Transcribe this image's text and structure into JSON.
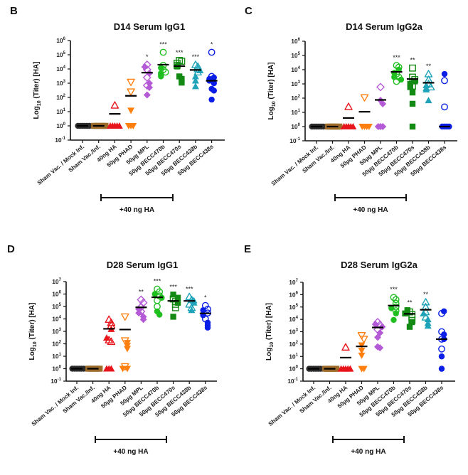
{
  "categories": [
    "Sham Vac. / Mock Inf.",
    "Sham Vac./Inf.",
    "40ng HA",
    "50µg PHAD",
    "50µg MPL",
    "50µg BECC470b",
    "50µg BECC470s",
    "50µg BECC438b",
    "50µg BECC438s"
  ],
  "group_styles": [
    {
      "color": "#2b2b2b",
      "marker": "circle"
    },
    {
      "color": "#9c6b2a",
      "marker": "square"
    },
    {
      "color": "#e8141b",
      "marker": "triangle-up"
    },
    {
      "color": "#ff7f0e",
      "marker": "triangle-down"
    },
    {
      "color": "#b45ad6",
      "marker": "diamond"
    },
    {
      "color": "#1fbf1f",
      "marker": "circle"
    },
    {
      "color": "#138a13",
      "marker": "square"
    },
    {
      "color": "#1fa3b8",
      "marker": "triangle-up"
    },
    {
      "color": "#0a1ee6",
      "marker": "circle"
    }
  ],
  "bracket_label": "+40 ng HA",
  "ylabel_prefix": "Log",
  "ylabel_sub": "10",
  "ylabel_suffix": " (Titer) [HA]",
  "chart_data": [
    {
      "panel": "B",
      "type": "scatter",
      "title": "D14 Serum IgG1",
      "xlabel": "",
      "ylabel": "Log10 (Titer) [HA]",
      "yscale": "log",
      "ylim_exp": [
        -1,
        6
      ],
      "categories_ref": "categories",
      "means": [
        1,
        1,
        7,
        130,
        5500,
        20000,
        16000,
        8500,
        1500
      ],
      "significance": [
        "",
        "",
        "",
        "",
        "*",
        "***",
        "***",
        "***",
        "*"
      ],
      "points": [
        {
          "open": [],
          "filled": [
            1,
            1,
            1,
            1,
            1,
            1
          ]
        },
        {
          "open": [],
          "filled": [
            1,
            1,
            1,
            1,
            1,
            1
          ]
        },
        {
          "open": [
            28
          ],
          "filled": [
            1,
            1,
            1,
            1,
            1
          ]
        },
        {
          "open": [
            1200,
            250
          ],
          "filled": [
            12,
            1,
            1,
            1
          ]
        },
        {
          "open": [
            20000,
            9000,
            2500,
            700
          ],
          "filled": [
            14000,
            5000,
            1000,
            500,
            150
          ]
        },
        {
          "open": [
            150000,
            18000,
            9000,
            6000
          ],
          "filled": [
            12000,
            5000,
            4000,
            3000
          ]
        },
        {
          "open": [
            40000,
            35000,
            25000,
            18000
          ],
          "filled": [
            15000,
            3000,
            2000,
            1100
          ]
        },
        {
          "open": [
            20000,
            15000,
            10000,
            6000
          ],
          "filled": [
            8000,
            3000,
            1500,
            600
          ]
        },
        {
          "open": [
            150000,
            3000
          ],
          "filled": [
            2500,
            2000,
            1500,
            1000,
            400,
            300,
            70
          ]
        }
      ]
    },
    {
      "panel": "C",
      "type": "scatter",
      "title": "D14 Serum IgG2a",
      "xlabel": "",
      "ylabel": "Log10 (Titer) [HA]",
      "yscale": "log",
      "ylim_exp": [
        -1,
        6
      ],
      "means": [
        1,
        1,
        4,
        11,
        75,
        7000,
        2200,
        1200,
        1
      ],
      "significance": [
        "",
        "",
        "",
        "",
        "",
        "***",
        "**",
        "**",
        ""
      ],
      "points": [
        {
          "open": [],
          "filled": [
            1,
            1,
            1,
            1,
            1,
            1
          ]
        },
        {
          "open": [],
          "filled": [
            1,
            1,
            1,
            1,
            1,
            1
          ]
        },
        {
          "open": [
            25
          ],
          "filled": [
            1,
            1,
            1,
            1,
            1
          ]
        },
        {
          "open": [
            110
          ],
          "filled": [
            1,
            1,
            1,
            1
          ]
        },
        {
          "open": [
            600
          ],
          "filled": [
            70,
            40,
            1,
            1,
            1
          ]
        },
        {
          "open": [
            20000,
            15000,
            5000,
            3000,
            1500
          ],
          "filled": [
            10000,
            6000,
            3000,
            2000
          ]
        },
        {
          "open": [
            13000,
            3000,
            2000,
            700
          ],
          "filled": [
            1500,
            1000,
            600,
            250,
            40,
            1
          ]
        },
        {
          "open": [
            5000,
            2000,
            1000,
            600
          ],
          "filled": [
            800,
            500,
            400,
            70
          ]
        },
        {
          "open": [
            1700,
            24
          ],
          "filled": [
            5000,
            1,
            1,
            1,
            1
          ]
        }
      ]
    },
    {
      "panel": "D",
      "type": "scatter",
      "title": "D28 Serum IgG1",
      "xlabel": "",
      "ylabel": "Log10 (Titer) [HA]",
      "yscale": "log",
      "ylim_exp": [
        -1,
        7
      ],
      "means": [
        1,
        1,
        1600,
        1400,
        85000,
        550000,
        280000,
        280000,
        28000
      ],
      "significance": [
        "",
        "",
        "",
        "",
        "**",
        "***",
        "***",
        "***",
        "*"
      ],
      "points": [
        {
          "open": [],
          "filled": [
            1,
            1,
            1,
            1,
            1,
            1
          ]
        },
        {
          "open": [],
          "filled": [
            1,
            1,
            1,
            1,
            1,
            1
          ]
        },
        {
          "open": [
            9000,
            5000,
            3000,
            200,
            150
          ],
          "filled": [
            1500,
            300,
            1,
            1,
            1
          ]
        },
        {
          "open": [
            15000,
            180,
            1.5
          ],
          "filled": [
            120,
            70,
            40,
            1,
            1
          ]
        },
        {
          "open": [
            350000,
            200000,
            90000,
            40000
          ],
          "filled": [
            60000,
            30000,
            15000,
            9000
          ]
        },
        {
          "open": [
            2500000,
            1500000,
            700000,
            300000,
            100000
          ],
          "filled": [
            1000000,
            500000,
            40000,
            22000
          ]
        },
        {
          "open": [
            400000,
            250000,
            150000,
            80000
          ],
          "filled": [
            900000,
            500000,
            200000,
            15000
          ]
        },
        {
          "open": [
            600000,
            350000,
            150000,
            80000
          ],
          "filled": [
            300000,
            200000,
            50000
          ]
        },
        {
          "open": [
            120000,
            60000,
            30000,
            10000
          ],
          "filled": [
            50000,
            20000,
            5000,
            3000,
            2000
          ]
        }
      ]
    },
    {
      "panel": "E",
      "type": "scatter",
      "title": "D28 Serum IgG2a",
      "xlabel": "",
      "ylabel": "Log10 (Titer) [HA]",
      "yscale": "log",
      "ylim_exp": [
        -1,
        7
      ],
      "means": [
        1,
        1,
        8,
        65,
        2200,
        130000,
        28000,
        60000,
        250
      ],
      "significance": [
        "",
        "",
        "",
        "",
        "",
        "***",
        "**",
        "**",
        ""
      ],
      "points": [
        {
          "open": [],
          "filled": [
            1,
            1,
            1,
            1,
            1,
            1
          ]
        },
        {
          "open": [],
          "filled": [
            1,
            1,
            1,
            1,
            1,
            1
          ]
        },
        {
          "open": [
            55
          ],
          "filled": [
            1,
            1,
            1,
            1,
            1
          ]
        },
        {
          "open": [
            500,
            250
          ],
          "filled": [
            80,
            30,
            12,
            1,
            1
          ]
        },
        {
          "open": [
            6000,
            3500,
            1500
          ],
          "filled": [
            4000,
            2500,
            800,
            350,
            60,
            50
          ]
        },
        {
          "open": [
            600000,
            400000,
            200000,
            100000,
            50000
          ],
          "filled": [
            80000,
            30000,
            9000
          ]
        },
        {
          "open": [
            40000,
            25000,
            15000,
            8000
          ],
          "filled": [
            55000,
            30000,
            6000,
            2500
          ]
        },
        {
          "open": [
            250000,
            100000,
            40000,
            15000
          ],
          "filled": [
            30000,
            10000,
            5000,
            3000
          ]
        },
        {
          "open": [
            30000,
            1000,
            250,
            40
          ],
          "filled": [
            45000,
            600,
            250,
            10,
            1
          ]
        }
      ]
    }
  ]
}
